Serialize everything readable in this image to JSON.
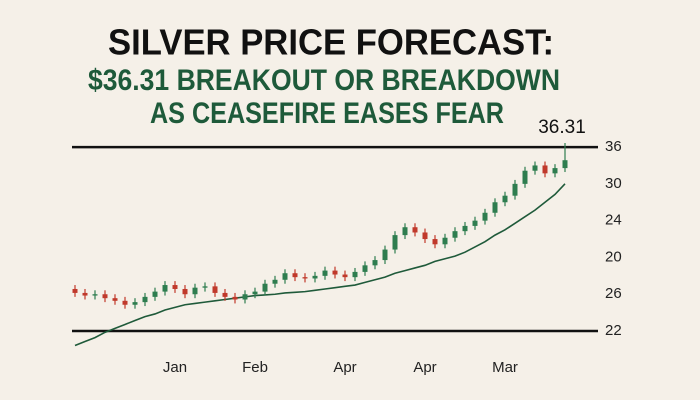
{
  "chart_data": {
    "type": "candlestick",
    "title": "SILVER PRICE FORECAST:",
    "subtitle": [
      "$36.31 BREAKOUT OR BREAKDOWN",
      "AS CEASEFIRE EASES FEAR"
    ],
    "annotation": "36.31",
    "categories": [
      null,
      null,
      null,
      null,
      null,
      null,
      null,
      null,
      null,
      null,
      "Jan",
      null,
      null,
      null,
      null,
      null,
      null,
      null,
      "Feb",
      null,
      null,
      null,
      null,
      null,
      null,
      null,
      null,
      "Apr",
      null,
      null,
      null,
      null,
      null,
      null,
      null,
      "Apr",
      null,
      null,
      null,
      null,
      null,
      null,
      null,
      "Mar",
      null,
      null,
      null,
      null,
      null,
      null
    ],
    "open": [
      25.2,
      24.9,
      24.7,
      24.8,
      24.5,
      24.3,
      24.0,
      24.2,
      24.6,
      25.0,
      25.5,
      25.2,
      24.8,
      25.3,
      25.4,
      24.9,
      24.6,
      24.4,
      24.8,
      25.0,
      25.6,
      25.9,
      26.4,
      26.1,
      26.0,
      26.2,
      26.6,
      26.3,
      26.1,
      26.5,
      27.0,
      27.4,
      28.2,
      29.3,
      29.9,
      29.5,
      29.0,
      28.6,
      29.1,
      29.6,
      30.0,
      30.4,
      31.0,
      31.8,
      32.3,
      33.2,
      34.2,
      34.6,
      34.0,
      34.4
    ],
    "high": [
      25.5,
      25.2,
      25.1,
      25.1,
      24.8,
      24.6,
      24.5,
      24.9,
      25.3,
      25.8,
      25.8,
      25.5,
      25.6,
      25.7,
      25.7,
      25.2,
      24.9,
      25.1,
      25.3,
      25.9,
      26.2,
      26.7,
      26.7,
      26.4,
      26.5,
      26.9,
      26.9,
      26.6,
      26.8,
      27.3,
      27.7,
      28.5,
      29.6,
      30.2,
      30.2,
      29.8,
      29.3,
      29.4,
      29.9,
      30.3,
      30.7,
      31.3,
      32.1,
      32.6,
      33.5,
      34.5,
      34.9,
      34.9,
      34.7,
      36.31
    ],
    "low": [
      24.6,
      24.4,
      24.4,
      24.2,
      24.0,
      23.7,
      23.7,
      23.9,
      24.3,
      24.7,
      24.9,
      24.5,
      24.5,
      25.0,
      24.6,
      24.3,
      24.1,
      24.1,
      24.5,
      24.7,
      25.3,
      25.6,
      25.8,
      25.7,
      25.7,
      25.9,
      26.0,
      25.8,
      25.8,
      26.2,
      26.7,
      27.1,
      27.9,
      29.0,
      29.2,
      28.7,
      28.3,
      28.3,
      28.8,
      29.3,
      29.7,
      30.1,
      30.7,
      31.5,
      32.0,
      32.9,
      33.9,
      33.7,
      33.7,
      34.1
    ],
    "close": [
      24.9,
      24.7,
      24.8,
      24.5,
      24.3,
      24.0,
      24.2,
      24.6,
      25.0,
      25.5,
      25.2,
      24.8,
      25.3,
      25.4,
      24.9,
      24.6,
      24.4,
      24.8,
      25.0,
      25.6,
      25.9,
      26.4,
      26.1,
      26.0,
      26.2,
      26.6,
      26.3,
      26.1,
      26.5,
      27.0,
      27.4,
      28.2,
      29.3,
      29.9,
      29.5,
      29.0,
      28.6,
      29.1,
      29.6,
      30.0,
      30.4,
      31.0,
      31.8,
      32.3,
      33.2,
      34.2,
      34.6,
      34.0,
      34.4,
      35.0
    ],
    "moving_average": [
      20.9,
      21.2,
      21.5,
      21.9,
      22.2,
      22.5,
      22.8,
      23.1,
      23.3,
      23.6,
      23.8,
      24.0,
      24.1,
      24.2,
      24.3,
      24.4,
      24.5,
      24.6,
      24.7,
      24.75,
      24.8,
      24.9,
      24.95,
      25.0,
      25.1,
      25.2,
      25.3,
      25.4,
      25.5,
      25.7,
      25.9,
      26.1,
      26.4,
      26.6,
      26.8,
      27.0,
      27.3,
      27.5,
      27.7,
      28.0,
      28.4,
      28.8,
      29.3,
      29.7,
      30.2,
      30.7,
      31.2,
      31.8,
      32.4,
      33.2
    ],
    "reference_lines": [
      36,
      22
    ],
    "y_axis_labels": [
      "36",
      "30",
      "24",
      "20",
      "26",
      "22"
    ],
    "ylim": [
      20.8,
      36.5
    ],
    "up_color": "#2e7d4f",
    "down_color": "#c0392b",
    "line_color": "#1f5a3a",
    "title_color": "#111111",
    "subtitle_color": "#1e5a3a"
  }
}
